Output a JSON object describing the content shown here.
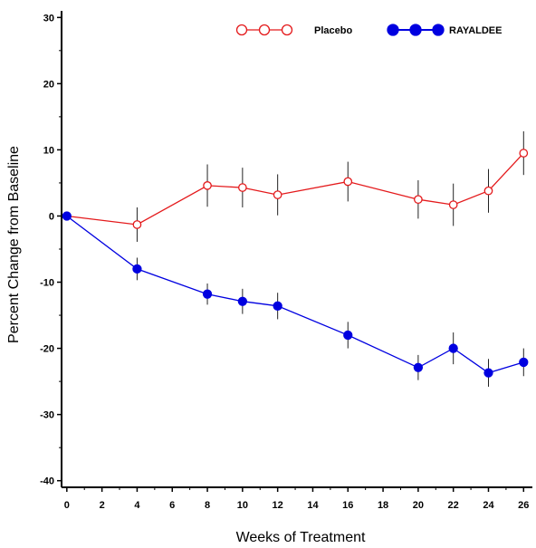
{
  "chart_data": {
    "type": "line",
    "xlabel": "Weeks of Treatment",
    "ylabel": "Percent Change from Baseline",
    "xlim": [
      -0.3,
      26.5
    ],
    "ylim": [
      -41,
      31
    ],
    "x_ticks": [
      0,
      2,
      4,
      6,
      8,
      10,
      12,
      14,
      16,
      18,
      20,
      22,
      24,
      26
    ],
    "y_ticks": [
      30,
      20,
      10,
      0,
      -10,
      -20,
      -30,
      -40
    ],
    "grid": false,
    "legend_position": "top-right",
    "series": [
      {
        "name": "Placebo",
        "color": "#e41a1c",
        "marker": "open-circle",
        "points": [
          {
            "x": 0,
            "y": 0,
            "err": 0
          },
          {
            "x": 4,
            "y": -1.3,
            "err": 2.6
          },
          {
            "x": 8,
            "y": 4.6,
            "err": 3.2
          },
          {
            "x": 10,
            "y": 4.3,
            "err": 3.0
          },
          {
            "x": 12,
            "y": 3.2,
            "err": 3.1
          },
          {
            "x": 16,
            "y": 5.2,
            "err": 3.0
          },
          {
            "x": 20,
            "y": 2.5,
            "err": 2.9
          },
          {
            "x": 22,
            "y": 1.7,
            "err": 3.2
          },
          {
            "x": 24,
            "y": 3.8,
            "err": 3.3
          },
          {
            "x": 26,
            "y": 9.5,
            "err": 3.3
          }
        ]
      },
      {
        "name": "RAYALDEE",
        "color": "#0000e0",
        "marker": "filled-circle",
        "points": [
          {
            "x": 0,
            "y": 0,
            "err": 0
          },
          {
            "x": 4,
            "y": -8.0,
            "err": 1.7
          },
          {
            "x": 8,
            "y": -11.8,
            "err": 1.6
          },
          {
            "x": 10,
            "y": -12.9,
            "err": 1.9
          },
          {
            "x": 12,
            "y": -13.6,
            "err": 2.0
          },
          {
            "x": 16,
            "y": -18.0,
            "err": 2.0
          },
          {
            "x": 20,
            "y": -22.9,
            "err": 1.9
          },
          {
            "x": 22,
            "y": -20.0,
            "err": 2.4
          },
          {
            "x": 24,
            "y": -23.7,
            "err": 2.1
          },
          {
            "x": 26,
            "y": -22.1,
            "err": 2.1
          }
        ]
      }
    ]
  }
}
